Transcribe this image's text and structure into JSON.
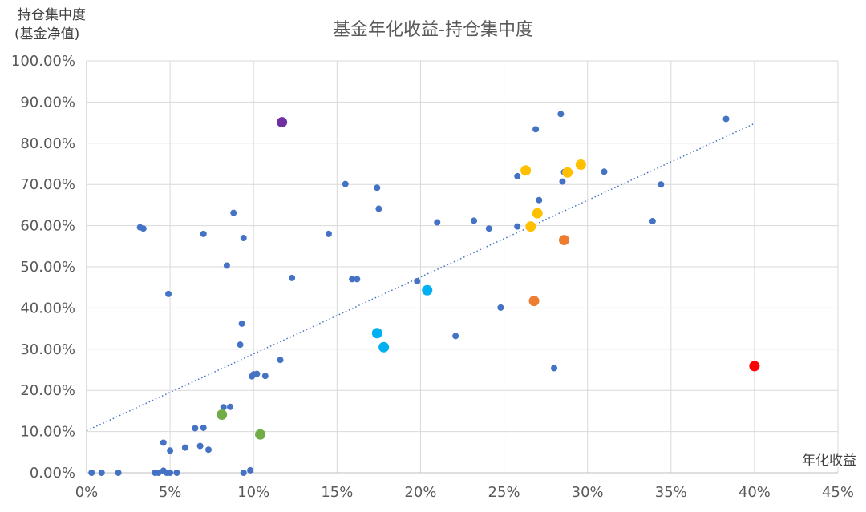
{
  "chart_data": {
    "type": "scatter",
    "title": "基金年化收益-持仓集中度",
    "ylabel_line1": "持仓集中度",
    "ylabel_line2": "(基金净值)",
    "xlabel": "年化收益",
    "xlim": [
      0,
      45
    ],
    "ylim": [
      0,
      100
    ],
    "x_ticks": [
      0,
      5,
      10,
      15,
      20,
      25,
      30,
      35,
      40,
      45
    ],
    "y_ticks": [
      0,
      10,
      20,
      30,
      40,
      50,
      60,
      70,
      80,
      90,
      100
    ],
    "x_tick_labels": [
      "0%",
      "5%",
      "10%",
      "15%",
      "20%",
      "25%",
      "30%",
      "35%",
      "40%",
      "45%"
    ],
    "y_tick_labels": [
      "0.00%",
      "10.00%",
      "20.00%",
      "30.00%",
      "40.00%",
      "50.00%",
      "60.00%",
      "70.00%",
      "80.00%",
      "90.00%",
      "100.00%"
    ],
    "trendline": {
      "x": [
        0,
        40
      ],
      "y": [
        10.2,
        84.8
      ],
      "style": "dotted",
      "color": "#4472c4"
    },
    "series": [
      {
        "color": "#4472c4",
        "size": "small",
        "points": [
          [
            0.3,
            0
          ],
          [
            0.9,
            0
          ],
          [
            1.9,
            0
          ],
          [
            3.2,
            59.6
          ],
          [
            3.4,
            59.3
          ],
          [
            4.1,
            0
          ],
          [
            4.3,
            0
          ],
          [
            4.6,
            0.5
          ],
          [
            4.8,
            0
          ],
          [
            5.0,
            0
          ],
          [
            5.4,
            0
          ],
          [
            4.6,
            7.3
          ],
          [
            5.0,
            5.4
          ],
          [
            4.9,
            43.4
          ],
          [
            5.9,
            6.1
          ],
          [
            6.5,
            10.8
          ],
          [
            6.8,
            6.5
          ],
          [
            7.0,
            10.9
          ],
          [
            7.3,
            5.6
          ],
          [
            7.0,
            58.0
          ],
          [
            8.2,
            15.9
          ],
          [
            8.4,
            50.3
          ],
          [
            8.6,
            16.0
          ],
          [
            8.8,
            63.1
          ],
          [
            9.2,
            31.1
          ],
          [
            9.3,
            36.2
          ],
          [
            9.4,
            57.0
          ],
          [
            9.4,
            0
          ],
          [
            9.8,
            0.6
          ],
          [
            9.9,
            23.4
          ],
          [
            10.0,
            23.9
          ],
          [
            10.2,
            24.0
          ],
          [
            10.7,
            23.5
          ],
          [
            11.6,
            27.4
          ],
          [
            12.3,
            47.3
          ],
          [
            14.5,
            58.0
          ],
          [
            15.5,
            70.1
          ],
          [
            15.9,
            47.0
          ],
          [
            16.2,
            47.0
          ],
          [
            17.4,
            69.2
          ],
          [
            17.5,
            64.1
          ],
          [
            19.8,
            46.5
          ],
          [
            21.0,
            60.8
          ],
          [
            22.1,
            33.2
          ],
          [
            23.2,
            61.2
          ],
          [
            24.1,
            59.3
          ],
          [
            24.8,
            40.1
          ],
          [
            25.8,
            72.0
          ],
          [
            25.8,
            59.8
          ],
          [
            26.9,
            83.4
          ],
          [
            27.1,
            66.2
          ],
          [
            28.0,
            25.4
          ],
          [
            28.4,
            87.1
          ],
          [
            28.5,
            70.7
          ],
          [
            28.6,
            73.0
          ],
          [
            31.0,
            73.1
          ],
          [
            33.9,
            61.1
          ],
          [
            34.4,
            70.0
          ],
          [
            38.3,
            85.9
          ]
        ]
      },
      {
        "color": "#7030a0",
        "size": "large",
        "points": [
          [
            11.7,
            85.1
          ]
        ]
      },
      {
        "color": "#ffc000",
        "size": "large",
        "points": [
          [
            26.3,
            73.4
          ],
          [
            28.8,
            72.9
          ],
          [
            29.6,
            74.8
          ],
          [
            27.0,
            63.0
          ],
          [
            26.6,
            59.8
          ]
        ]
      },
      {
        "color": "#ed7d31",
        "size": "large",
        "points": [
          [
            28.6,
            56.5
          ],
          [
            26.8,
            41.7
          ]
        ]
      },
      {
        "color": "#00b0f0",
        "size": "large",
        "points": [
          [
            20.4,
            44.3
          ],
          [
            17.4,
            33.9
          ],
          [
            17.8,
            30.5
          ]
        ]
      },
      {
        "color": "#70ad47",
        "size": "large",
        "points": [
          [
            8.1,
            14.1
          ],
          [
            10.4,
            9.3
          ]
        ]
      },
      {
        "color": "#ff0000",
        "size": "large",
        "points": [
          [
            40.0,
            25.9
          ]
        ]
      }
    ]
  }
}
